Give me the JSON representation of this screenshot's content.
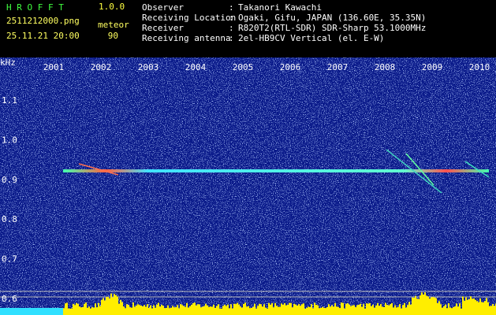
{
  "header": {
    "app_name": "H R O F F T",
    "version": "1.0.0",
    "file_name": "2511212000.png",
    "mode": "meteor",
    "datetime": "25.11.21 20:00",
    "count": "90",
    "info": [
      {
        "label": "Observer",
        "value": "Takanori Kawachi"
      },
      {
        "label": "Receiving Location",
        "value": "Ogaki, Gifu, JAPAN (136.60E, 35.35N)"
      },
      {
        "label": "Receiver",
        "value": "R820T2(RTL-SDR) SDR-Sharp 53.1000MHz"
      },
      {
        "label": "Receiving antenna",
        "value": "2el-HB9CV Vertical (el. E-W)"
      }
    ]
  },
  "spectrogram": {
    "unit": "kHz",
    "x_labels": [
      "2001",
      "2002",
      "2003",
      "2004",
      "2005",
      "2006",
      "2007",
      "2008",
      "2009",
      "2010"
    ],
    "y_labels": [
      "1.1",
      "1.0",
      "0.9",
      "0.8",
      "0.7",
      "0.6"
    ]
  }
}
